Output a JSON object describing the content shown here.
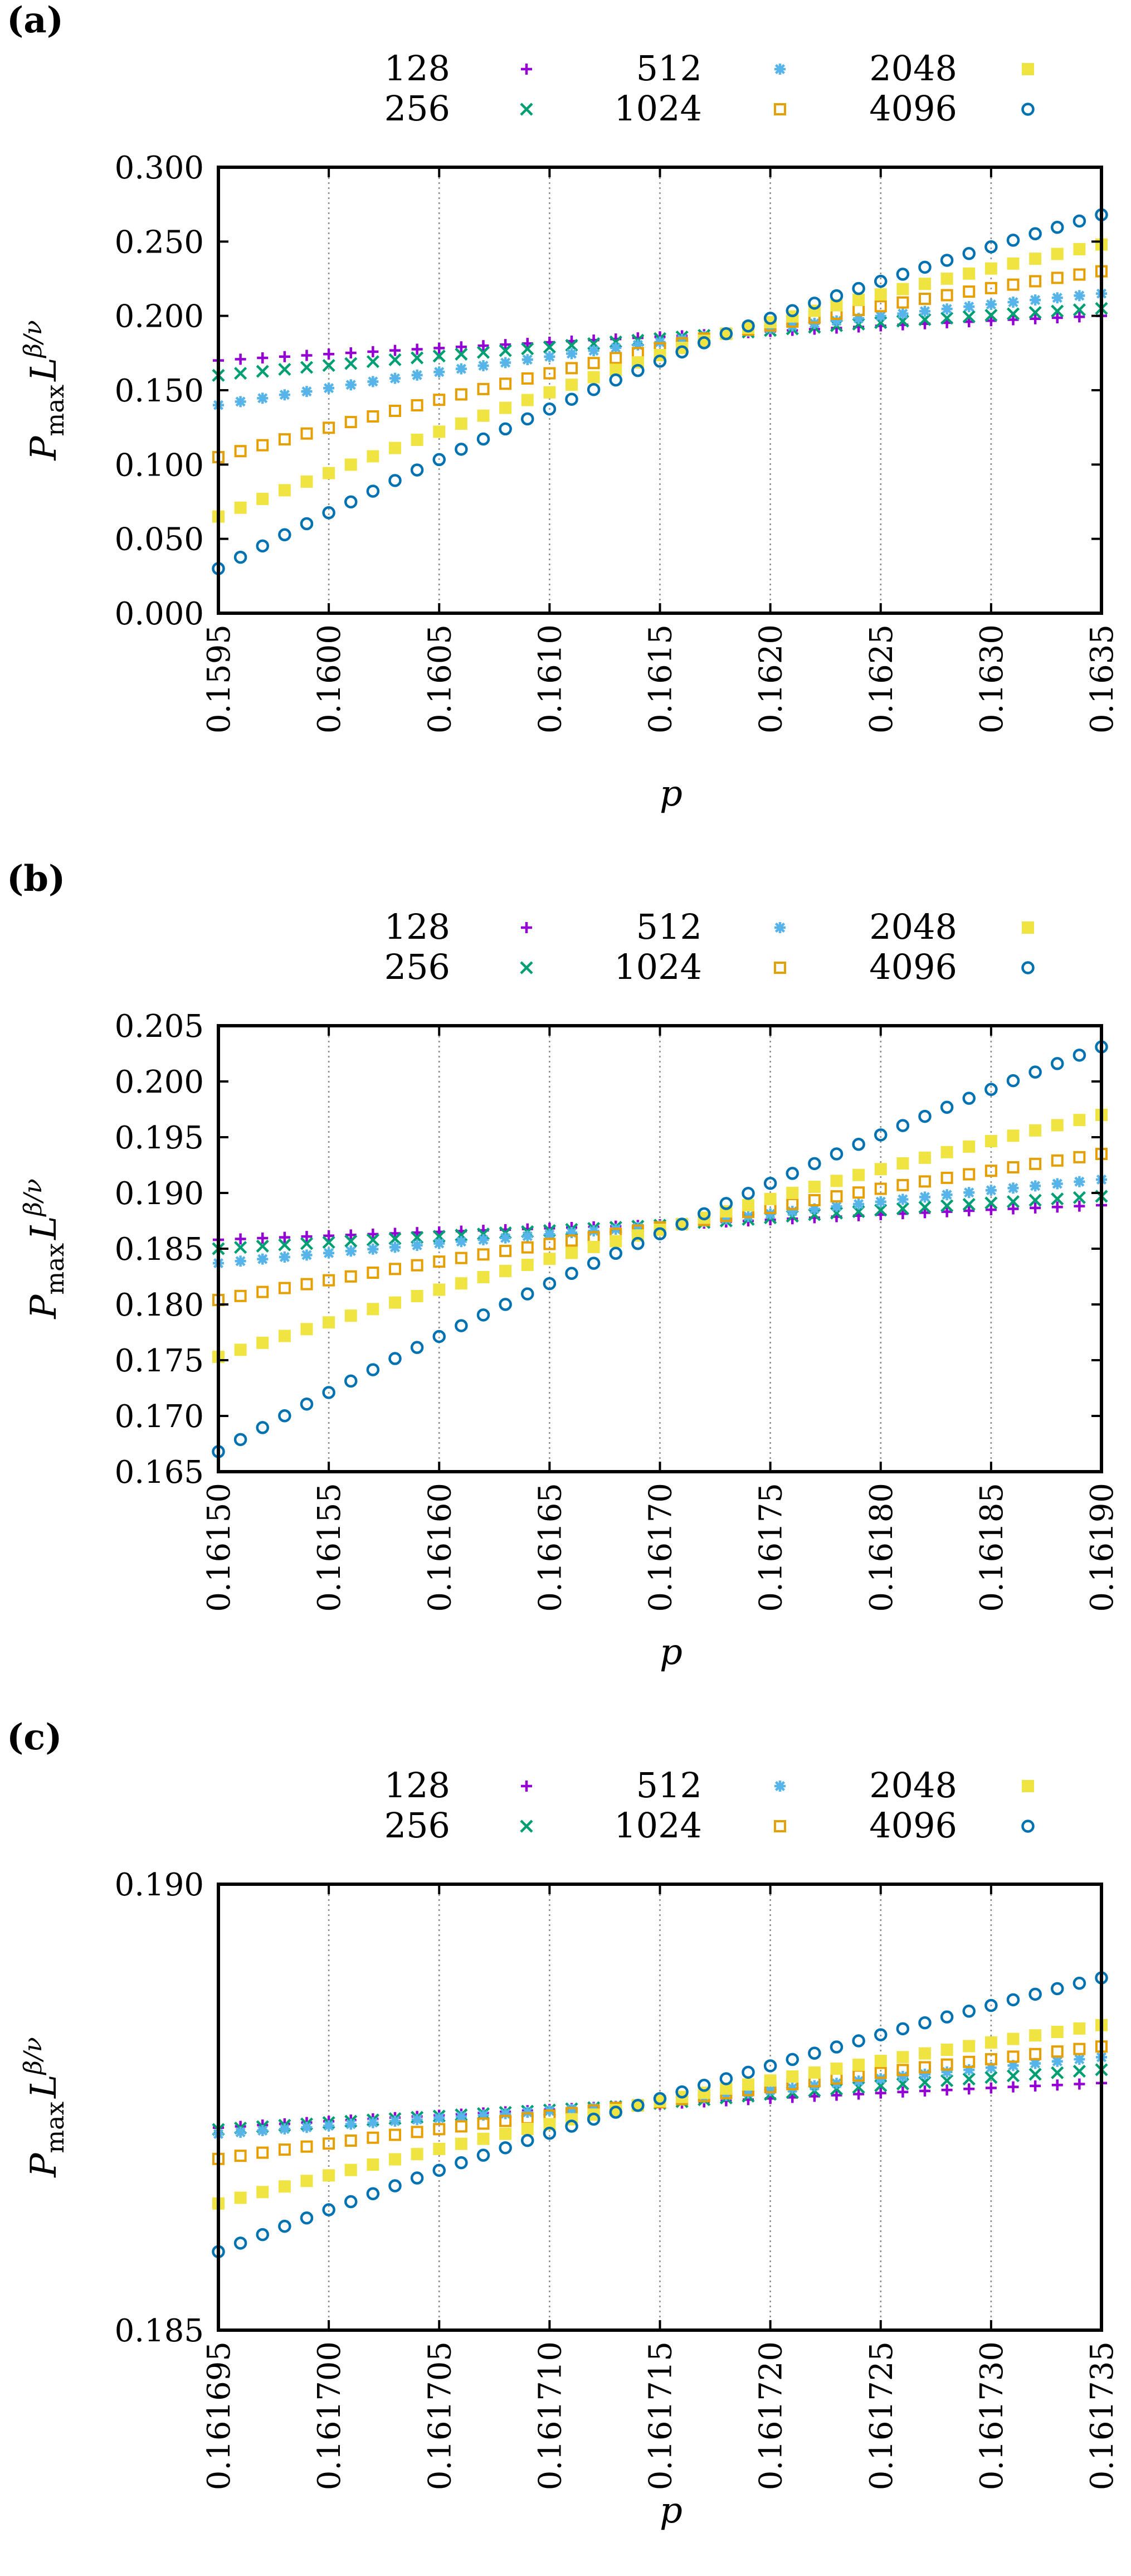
{
  "figure": {
    "panel_count": 3
  },
  "colors": {
    "128": "#9400d3",
    "256": "#009e73",
    "512": "#56b4e9",
    "1024": "#e69f00",
    "2048": "#f0e442",
    "4096": "#0072b2"
  },
  "chart_data": [
    {
      "type": "scatter",
      "panel_label": "(a)",
      "panel_letter": "a",
      "xlabel": "p",
      "ylabel": "P_max L^{β/ν}",
      "xlim": [
        0.1595,
        0.1635
      ],
      "ylim": [
        0.0,
        0.3
      ],
      "x_ticks": [
        "0.1595",
        "0.1600",
        "0.1605",
        "0.1610",
        "0.1615",
        "0.1620",
        "0.1625",
        "0.1630",
        "0.1635"
      ],
      "y_ticks": [
        "0.000",
        "0.050",
        "0.100",
        "0.150",
        "0.200",
        "0.250",
        "0.300"
      ],
      "x_start": 0.1595,
      "x_end": 0.1635,
      "n_points": 41,
      "crossing_x": 0.1618,
      "crossing_y": 0.188,
      "series": [
        {
          "name": "128",
          "marker": "plus",
          "y_at_start": 0.17,
          "y_at_end": 0.2
        },
        {
          "name": "256",
          "marker": "cross",
          "y_at_start": 0.16,
          "y_at_end": 0.205
        },
        {
          "name": "512",
          "marker": "star",
          "y_at_start": 0.14,
          "y_at_end": 0.215
        },
        {
          "name": "1024",
          "marker": "open-square",
          "y_at_start": 0.105,
          "y_at_end": 0.23
        },
        {
          "name": "2048",
          "marker": "filled-square",
          "y_at_start": 0.065,
          "y_at_end": 0.248
        },
        {
          "name": "4096",
          "marker": "open-circle",
          "y_at_start": 0.03,
          "y_at_end": 0.268
        }
      ]
    },
    {
      "type": "scatter",
      "panel_label": "(b)",
      "panel_letter": "b",
      "xlabel": "p",
      "ylabel": "P_max L^{β/ν}",
      "xlim": [
        0.1615,
        0.1619
      ],
      "ylim": [
        0.165,
        0.205
      ],
      "x_ticks": [
        "0.16150",
        "0.16155",
        "0.16160",
        "0.16165",
        "0.16170",
        "0.16175",
        "0.16180",
        "0.16185",
        "0.16190"
      ],
      "y_ticks": [
        "0.165",
        "0.170",
        "0.175",
        "0.180",
        "0.185",
        "0.190",
        "0.195",
        "0.200",
        "0.205"
      ],
      "x_start": 0.1615,
      "x_end": 0.1619,
      "n_points": 41,
      "crossing_x": 0.16171,
      "crossing_y": 0.1872,
      "series": [
        {
          "name": "128",
          "marker": "plus",
          "y_at_start": 0.1858,
          "y_at_end": 0.1889
        },
        {
          "name": "256",
          "marker": "cross",
          "y_at_start": 0.185,
          "y_at_end": 0.1897
        },
        {
          "name": "512",
          "marker": "star",
          "y_at_start": 0.1837,
          "y_at_end": 0.1912
        },
        {
          "name": "1024",
          "marker": "open-square",
          "y_at_start": 0.1804,
          "y_at_end": 0.1935
        },
        {
          "name": "2048",
          "marker": "filled-square",
          "y_at_start": 0.1753,
          "y_at_end": 0.197
        },
        {
          "name": "4096",
          "marker": "open-circle",
          "y_at_start": 0.1668,
          "y_at_end": 0.2031
        }
      ]
    },
    {
      "type": "scatter",
      "panel_label": "(c)",
      "panel_letter": "c",
      "xlabel": "p",
      "ylabel": "P_max L^{β/ν}",
      "xlim": [
        0.161695,
        0.161735
      ],
      "ylim": [
        0.185,
        0.19
      ],
      "x_ticks": [
        "0.161695",
        "0.161700",
        "0.161705",
        "0.161710",
        "0.161715",
        "0.161720",
        "0.161725",
        "0.161730",
        "0.161735"
      ],
      "y_ticks": [
        "0.185",
        "0.190"
      ],
      "x_start": 0.161695,
      "x_end": 0.161735,
      "n_points": 41,
      "crossing_x": 0.161714,
      "crossing_y": 0.18752,
      "series": [
        {
          "name": "128",
          "marker": "plus",
          "y_at_start": 0.18727,
          "y_at_end": 0.18777
        },
        {
          "name": "256",
          "marker": "cross",
          "y_at_start": 0.18725,
          "y_at_end": 0.18792
        },
        {
          "name": "512",
          "marker": "star",
          "y_at_start": 0.1872,
          "y_at_end": 0.18806
        },
        {
          "name": "1024",
          "marker": "open-square",
          "y_at_start": 0.18692,
          "y_at_end": 0.18818
        },
        {
          "name": "2048",
          "marker": "filled-square",
          "y_at_start": 0.18642,
          "y_at_end": 0.18842
        },
        {
          "name": "4096",
          "marker": "open-circle",
          "y_at_start": 0.18588,
          "y_at_end": 0.18895
        }
      ]
    }
  ]
}
